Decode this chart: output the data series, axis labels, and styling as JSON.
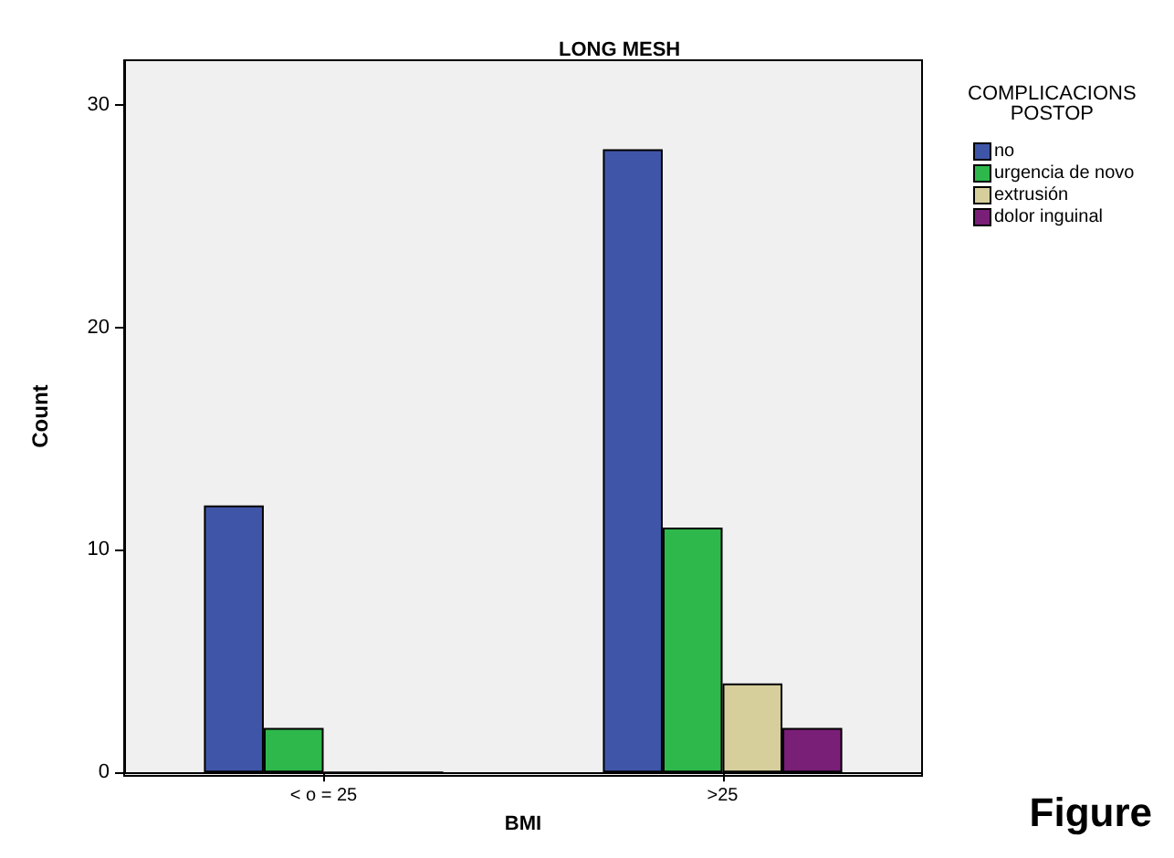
{
  "chart_data": {
    "type": "bar",
    "title": "LONG MESH",
    "xlabel": "BMI",
    "ylabel": "Count",
    "legend_title": "COMPLICACIONS\nPOSTOP",
    "categories": [
      "< o = 25",
      ">25"
    ],
    "series": [
      {
        "name": "no",
        "color": "#3f56a8",
        "values": [
          12,
          28
        ]
      },
      {
        "name": "urgencia de novo",
        "color": "#2eb84c",
        "values": [
          2,
          11
        ]
      },
      {
        "name": "extrusión",
        "color": "#d6cf9c",
        "values": [
          0,
          4
        ]
      },
      {
        "name": "dolor inguinal",
        "color": "#7a1f78",
        "values": [
          0,
          2
        ]
      }
    ],
    "ylim": [
      0,
      32
    ],
    "yticks": [
      0,
      10,
      20,
      30
    ],
    "grid": false,
    "legend": "top right",
    "annotations": [
      "Figure"
    ]
  }
}
